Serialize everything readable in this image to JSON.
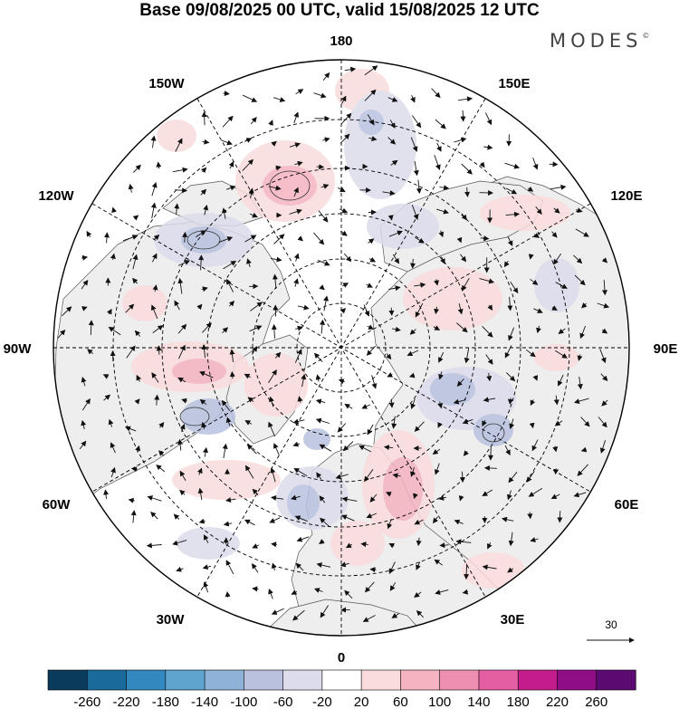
{
  "title": "Base 09/08/2025 00 UTC, valid 15/08/2025 12 UTC",
  "brand": "MODES",
  "brand_mark": "©",
  "longitude_labels": {
    "lon_180": "180",
    "lon_150e": "150E",
    "lon_120e": "120E",
    "lon_90e": "90E",
    "lon_60e": "60E",
    "lon_30e": "30E",
    "lon_0": "0",
    "lon_30w": "30W",
    "lon_60w": "60W",
    "lon_90w": "90W",
    "lon_120w": "120W",
    "lon_150w": "150W"
  },
  "reference_vector_label": "30",
  "colorbar": {
    "labels": [
      "-260",
      "-220",
      "-180",
      "-140",
      "-100",
      "-60",
      "-20",
      "20",
      "60",
      "100",
      "140",
      "180",
      "220",
      "260"
    ],
    "colors": [
      "#0b3b5c",
      "#1a6a9c",
      "#3388c0",
      "#5fa3cf",
      "#8fb3d8",
      "#b9c1df",
      "#dcdcec",
      "#ffffff",
      "#fadcdc",
      "#f4b3c0",
      "#ee8eb0",
      "#e45ea4",
      "#c41c8c",
      "#8f0d86",
      "#5a0a70"
    ]
  },
  "colors": {
    "land": "#eeeeee",
    "ocean": "#ffffff",
    "coast": "#555555",
    "grid": "#000000",
    "arrow": "#111111"
  }
}
